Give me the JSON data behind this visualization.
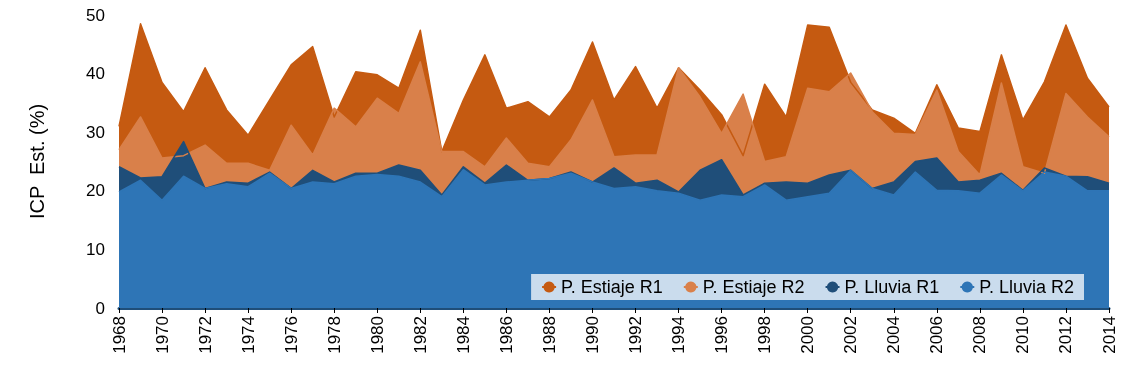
{
  "chart_data": {
    "type": "area",
    "ylabel": "ICP  Est. (%)",
    "x": [
      1968,
      1969,
      1970,
      1971,
      1972,
      1973,
      1974,
      1975,
      1976,
      1977,
      1978,
      1979,
      1980,
      1981,
      1982,
      1983,
      1984,
      1985,
      1986,
      1987,
      1988,
      1989,
      1990,
      1991,
      1992,
      1993,
      1994,
      1995,
      1996,
      1997,
      1998,
      1999,
      2000,
      2001,
      2002,
      2003,
      2004,
      2005,
      2006,
      2007,
      2008,
      2009,
      2010,
      2011,
      2012,
      2013,
      2014
    ],
    "xlim": [
      1968,
      2014
    ],
    "xticks": [
      1968,
      1970,
      1972,
      1974,
      1976,
      1978,
      1980,
      1982,
      1984,
      1986,
      1988,
      1990,
      1992,
      1994,
      1996,
      1998,
      2000,
      2002,
      2004,
      2006,
      2008,
      2010,
      2012,
      2014
    ],
    "ylim": [
      0,
      50
    ],
    "yticks": [
      0,
      10,
      20,
      30,
      40,
      50
    ],
    "grid": false,
    "legend": "bottom right",
    "marker": "none",
    "series": [
      {
        "name": "P. Estiaje R1",
        "color": "#c55a11",
        "values": [
          31,
          48.5,
          38.5,
          33.5,
          41,
          33.8,
          29.5,
          35.5,
          41.5,
          44.6,
          32.6,
          40.3,
          39.8,
          37.5,
          47.4,
          26.7,
          35.5,
          43.2,
          34.1,
          35.2,
          32.6,
          37.2,
          45.4,
          35.5,
          41.2,
          34.1,
          41,
          37.2,
          33,
          26,
          38.2,
          32.6,
          48.3,
          47.9,
          38.5,
          33.8,
          32.4,
          29.8,
          38.1,
          30.7,
          30.1,
          43.2,
          32.1,
          38.6,
          48.3,
          39.2,
          34.3
        ]
      },
      {
        "name": "P. Estiaje R2",
        "color": "#d9804a",
        "values": [
          27,
          32.6,
          25.6,
          26,
          27.8,
          24.7,
          24.7,
          23.5,
          31.2,
          26.1,
          34.1,
          30.9,
          35.8,
          33.2,
          42,
          26.7,
          26.7,
          24.1,
          29,
          24.7,
          24.1,
          28.7,
          35.5,
          25.8,
          26.1,
          26.1,
          41,
          36,
          29.8,
          36.5,
          25,
          25.8,
          37.5,
          36.9,
          40.1,
          33.5,
          29.8,
          29.6,
          37.2,
          26.7,
          22.7,
          38.4,
          24.1,
          23,
          36.6,
          32.6,
          29.2
        ]
      },
      {
        "name": "P. Lluvia R1",
        "color": "#1f4e79",
        "values": [
          24.1,
          22.2,
          22.4,
          28.4,
          20.4,
          21.5,
          21.3,
          23.2,
          20.4,
          23.5,
          21.5,
          23,
          23,
          24.4,
          23.5,
          19.3,
          24.1,
          21.3,
          24.4,
          21.8,
          22.1,
          23.2,
          21.5,
          23.9,
          21.3,
          21.8,
          19.8,
          23.5,
          25.3,
          19.3,
          21.3,
          21.5,
          21.3,
          22.7,
          23.5,
          20.4,
          21.5,
          25,
          25.6,
          21.5,
          21.8,
          23,
          20.1,
          23.9,
          22.5,
          22.4,
          21.3
        ]
      },
      {
        "name": "P. Lluvia R2",
        "color": "#2e75b6",
        "values": [
          19.8,
          21.8,
          18.4,
          22.5,
          20.4,
          21.2,
          20.7,
          23,
          20.4,
          21.5,
          21.2,
          22.5,
          22.8,
          22.5,
          21.5,
          19,
          23.6,
          21,
          21.5,
          21.8,
          22.1,
          23,
          21.5,
          20.4,
          20.7,
          20,
          19.6,
          18.4,
          19.3,
          19,
          21,
          18.4,
          19,
          19.6,
          23.5,
          20.4,
          19.3,
          23.2,
          20.1,
          20,
          19.6,
          22.7,
          20,
          23.2,
          22.5,
          20,
          20
        ]
      }
    ]
  }
}
